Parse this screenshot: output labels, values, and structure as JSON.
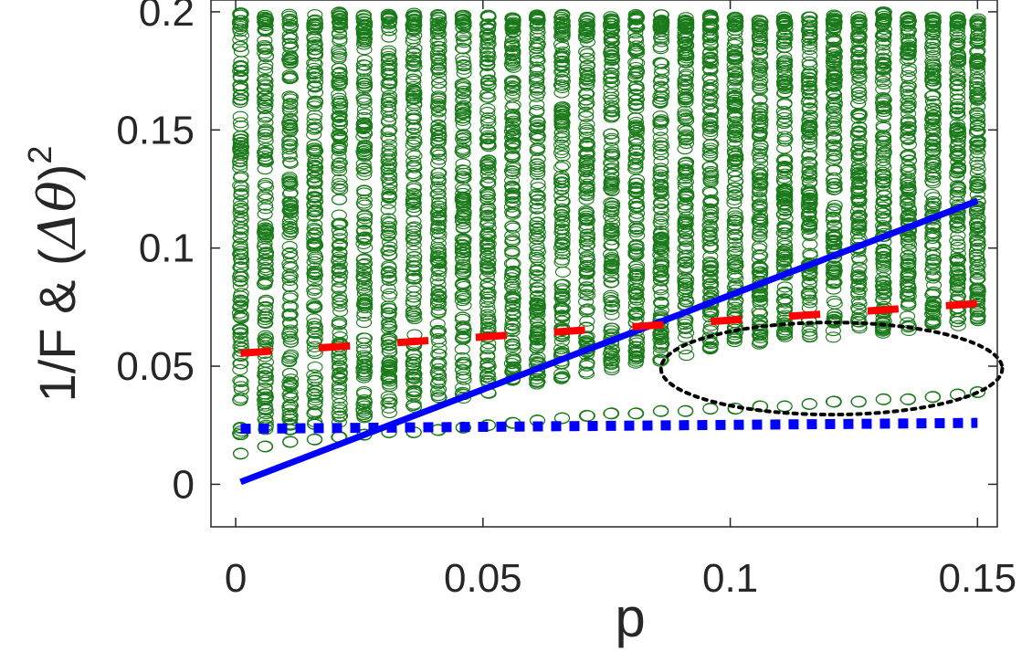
{
  "chart_data": {
    "type": "scatter",
    "title": "",
    "xlabel": "p",
    "ylabel": {
      "prefix": "1/F & (",
      "symbol": "Δθ",
      "suffix": ")",
      "exponent": "2"
    },
    "xlim": [
      -0.005,
      0.154
    ],
    "ylim": [
      -0.018,
      0.205
    ],
    "xticks": [
      0,
      0.05,
      0.1,
      0.15
    ],
    "xtick_labels": [
      "0",
      "0.05",
      "0.1",
      "0.15"
    ],
    "yticks": [
      0,
      0.05,
      0.1,
      0.15,
      0.2
    ],
    "ytick_labels": [
      "0",
      "0.05",
      "0.1",
      "0.15",
      "0.2"
    ],
    "grid": false,
    "legend": "none",
    "colors": {
      "scatter": "#1a7a1a",
      "solid_line": "#0000ff",
      "dotted_line": "#0000ff",
      "dashed_line": "#ff0000",
      "ellipse": "#000000"
    },
    "series": [
      {
        "style": "solid",
        "x": [
          0.001,
          0.15
        ],
        "y": [
          0.001,
          0.12
        ]
      },
      {
        "style": "dotted",
        "x": [
          0.001,
          0.15
        ],
        "y": [
          0.0235,
          0.026
        ]
      },
      {
        "style": "dashed",
        "x": [
          0.001,
          0.15
        ],
        "y": [
          0.0555,
          0.0765
        ]
      },
      {
        "style": "scatter-columns",
        "x": [
          0.001,
          0.006,
          0.011,
          0.016,
          0.021,
          0.026,
          0.031,
          0.036,
          0.041,
          0.046,
          0.051,
          0.056,
          0.061,
          0.066,
          0.071,
          0.076,
          0.081,
          0.086,
          0.091,
          0.096,
          0.101,
          0.106,
          0.111,
          0.116,
          0.121,
          0.126,
          0.131,
          0.136,
          0.141,
          0.146,
          0.15
        ],
        "y_min": [
          0.013,
          0.016,
          0.018,
          0.019,
          0.02,
          0.021,
          0.022,
          0.022,
          0.023,
          0.024,
          0.025,
          0.026,
          0.027,
          0.028,
          0.029,
          0.03,
          0.03,
          0.031,
          0.031,
          0.032,
          0.032,
          0.033,
          0.033,
          0.034,
          0.035,
          0.035,
          0.036,
          0.036,
          0.037,
          0.038,
          0.039
        ],
        "y_max": [
          0.2,
          0.199,
          0.2,
          0.199,
          0.2,
          0.199,
          0.199,
          0.2,
          0.199,
          0.199,
          0.199,
          0.198,
          0.199,
          0.199,
          0.198,
          0.198,
          0.199,
          0.199,
          0.198,
          0.199,
          0.199,
          0.198,
          0.199,
          0.198,
          0.199,
          0.198,
          0.2,
          0.199,
          0.198,
          0.198,
          0.197
        ],
        "y_lower_cluster_min": [
          0.02,
          0.022,
          0.023,
          0.025,
          0.026,
          0.028,
          0.03,
          0.032,
          0.034,
          0.036,
          0.038,
          0.04,
          0.042,
          0.044,
          0.046,
          0.048,
          0.05,
          0.052,
          0.054,
          0.056,
          0.058,
          0.059,
          0.06,
          0.061,
          0.062,
          0.063,
          0.064,
          0.065,
          0.066,
          0.067,
          0.068
        ]
      },
      {
        "style": "ellipse",
        "center": [
          0.1205,
          0.049
        ],
        "rx": 0.0345,
        "ry": 0.0195
      }
    ]
  }
}
